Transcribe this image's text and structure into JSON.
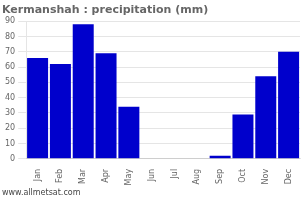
{
  "chart_data": {
    "type": "bar",
    "title": "Kermanshah : precipitation (mm)",
    "categories": [
      "Jan",
      "Feb",
      "Mar",
      "Apr",
      "May",
      "Jun",
      "Jul",
      "Aug",
      "Sep",
      "Oct",
      "Nov",
      "Dec"
    ],
    "values": [
      66,
      62,
      88,
      69,
      34,
      0,
      0,
      0,
      2,
      29,
      54,
      70
    ],
    "color": "#0000cc",
    "ylim": [
      0,
      90
    ],
    "yticks": [
      0,
      10,
      20,
      30,
      40,
      50,
      60,
      70,
      80,
      90
    ],
    "grid": true,
    "annotations": [
      "www.allmetsat.com"
    ]
  }
}
